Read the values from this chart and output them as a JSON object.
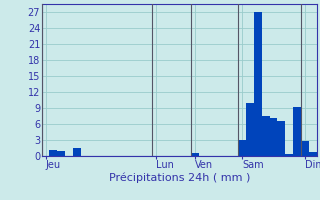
{
  "ylabel_values": [
    0,
    3,
    6,
    9,
    12,
    15,
    18,
    21,
    24,
    27
  ],
  "ylim": [
    0,
    28.5
  ],
  "background_color": "#cceaea",
  "grid_color": "#99cccc",
  "bar_color": "#0044bb",
  "x_tick_labels": [
    "Jeu",
    "Lun",
    "Ven",
    "Sam",
    "Dim"
  ],
  "x_tick_positions": [
    0.5,
    14.5,
    19.5,
    25.5,
    33.5
  ],
  "num_bars": 35,
  "bar_values": [
    0,
    1.2,
    0.9,
    0,
    1.5,
    0,
    0,
    0,
    0,
    0,
    0,
    0,
    0,
    0,
    0,
    0,
    0,
    0,
    0,
    0.5,
    0,
    0,
    0,
    0,
    0,
    3.0,
    10.0,
    27.0,
    7.5,
    7.2,
    6.5,
    0.3,
    9.2,
    2.8,
    0.7
  ],
  "xlabel": "Précipitations 24h ( mm )",
  "vline_positions": [
    0,
    14,
    19,
    25,
    33
  ]
}
